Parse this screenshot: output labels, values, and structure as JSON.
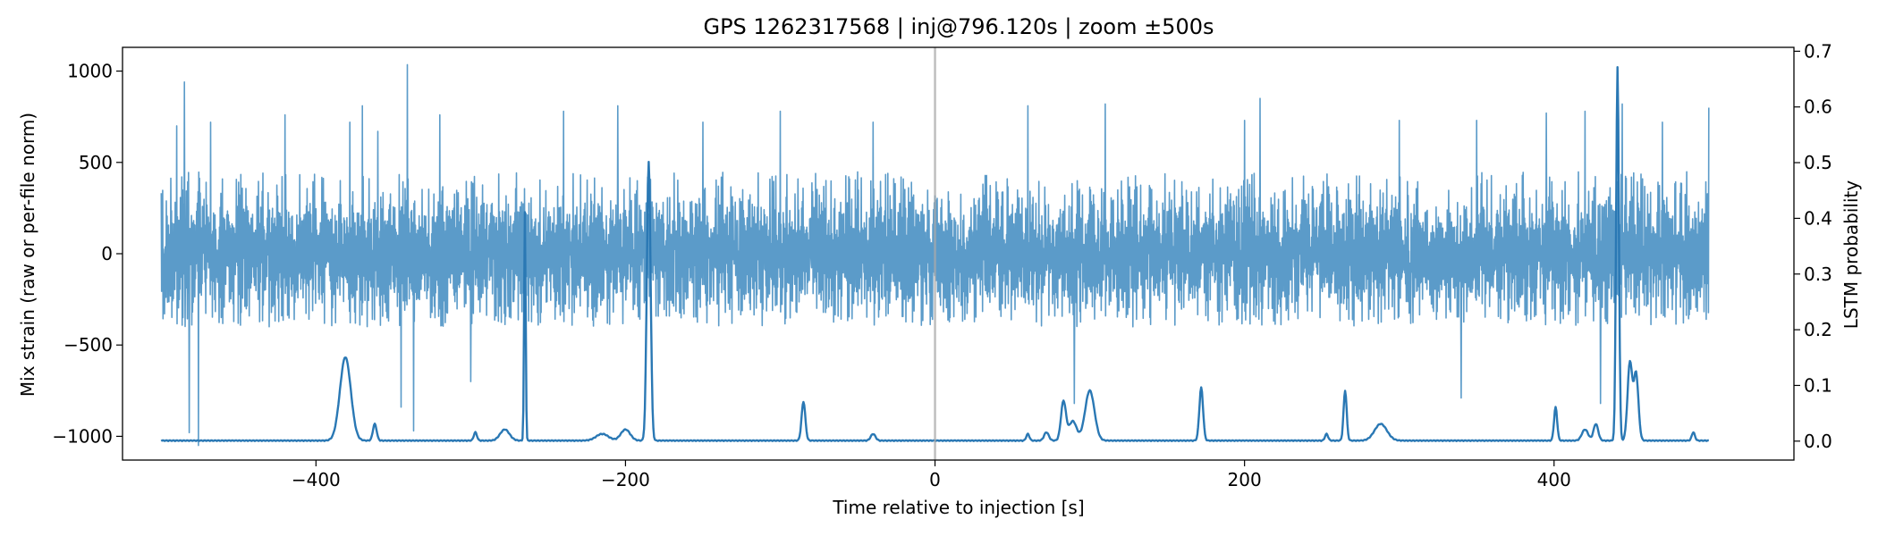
{
  "chart_data": {
    "type": "line",
    "title": "GPS 1262317568 | inj@796.120s | zoom ±500s",
    "xlabel": "Time relative to injection [s]",
    "ylabel": "Mix strain (raw or per-file norm)",
    "ylabel_right": "LSTM probability",
    "xlim": [
      -525,
      555
    ],
    "ylim": [
      -1130,
      1130
    ],
    "ylim_right": [
      -0.034,
      0.707
    ],
    "x_ticks": [
      -400,
      -200,
      0,
      200,
      400
    ],
    "y_ticks": [
      -1000,
      -500,
      0,
      500,
      1000
    ],
    "y_ticks_right": [
      0.0,
      0.1,
      0.2,
      0.3,
      0.4,
      0.5,
      0.6,
      0.7
    ],
    "x_tick_labels": [
      "−400",
      "−200",
      "0",
      "200",
      "400"
    ],
    "y_tick_labels": [
      "−1000",
      "−500",
      "0",
      "500",
      "1000"
    ],
    "y_tick_labels_right": [
      "0.0",
      "0.1",
      "0.2",
      "0.3",
      "0.4",
      "0.5",
      "0.6",
      "0.7"
    ],
    "grid": false,
    "injection_marker_x": 0,
    "colors": {
      "strain": "#5b9bc9",
      "probability": "#2a78b4",
      "marker": "#aaaaaa"
    },
    "strain": {
      "x_range": [
        -500,
        500
      ],
      "typical_amplitude": [
        -400,
        450
      ],
      "spikes": [
        {
          "x": -490,
          "y": 700
        },
        {
          "x": -485,
          "y": 940
        },
        {
          "x": -482,
          "y": -980
        },
        {
          "x": -476,
          "y": -1050
        },
        {
          "x": -468,
          "y": 720
        },
        {
          "x": -420,
          "y": 760
        },
        {
          "x": -378,
          "y": 720
        },
        {
          "x": -370,
          "y": 810
        },
        {
          "x": -360,
          "y": 670
        },
        {
          "x": -345,
          "y": -840
        },
        {
          "x": -341,
          "y": 1035
        },
        {
          "x": -337,
          "y": -970
        },
        {
          "x": -320,
          "y": 760
        },
        {
          "x": -300,
          "y": -700
        },
        {
          "x": -240,
          "y": 780
        },
        {
          "x": -205,
          "y": 810
        },
        {
          "x": -150,
          "y": 720
        },
        {
          "x": -100,
          "y": 780
        },
        {
          "x": -40,
          "y": 720
        },
        {
          "x": 60,
          "y": 810
        },
        {
          "x": 90,
          "y": -820
        },
        {
          "x": 110,
          "y": 820
        },
        {
          "x": 200,
          "y": 730
        },
        {
          "x": 210,
          "y": 850
        },
        {
          "x": 300,
          "y": 730
        },
        {
          "x": 340,
          "y": -790
        },
        {
          "x": 350,
          "y": 730
        },
        {
          "x": 395,
          "y": 770
        },
        {
          "x": 420,
          "y": 780
        },
        {
          "x": 430,
          "y": -820
        },
        {
          "x": 444,
          "y": 820
        },
        {
          "x": 470,
          "y": 720
        },
        {
          "x": 500,
          "y": 800
        }
      ]
    },
    "probability": {
      "baseline": 0.0,
      "peaks": [
        {
          "x": -381,
          "y": 0.15,
          "w": 3.5
        },
        {
          "x": -362,
          "y": 0.03,
          "w": 1.2
        },
        {
          "x": -297,
          "y": 0.015,
          "w": 1.0
        },
        {
          "x": -278,
          "y": 0.02,
          "w": 3.0
        },
        {
          "x": -265,
          "y": 0.41,
          "w": 0.5
        },
        {
          "x": -215,
          "y": 0.012,
          "w": 4.0
        },
        {
          "x": -200,
          "y": 0.02,
          "w": 3.0
        },
        {
          "x": -185,
          "y": 0.5,
          "w": 1.2
        },
        {
          "x": -85,
          "y": 0.07,
          "w": 1.2
        },
        {
          "x": -40,
          "y": 0.012,
          "w": 1.5
        },
        {
          "x": 60,
          "y": 0.012,
          "w": 1.0
        },
        {
          "x": 72,
          "y": 0.015,
          "w": 1.5
        },
        {
          "x": 83,
          "y": 0.07,
          "w": 1.6
        },
        {
          "x": 89,
          "y": 0.035,
          "w": 2.5
        },
        {
          "x": 100,
          "y": 0.09,
          "w": 3.0
        },
        {
          "x": 172,
          "y": 0.095,
          "w": 1.2
        },
        {
          "x": 253,
          "y": 0.012,
          "w": 1.0
        },
        {
          "x": 265,
          "y": 0.09,
          "w": 1.0
        },
        {
          "x": 288,
          "y": 0.03,
          "w": 4.0
        },
        {
          "x": 401,
          "y": 0.06,
          "w": 1.0
        },
        {
          "x": 420,
          "y": 0.02,
          "w": 2.0
        },
        {
          "x": 427,
          "y": 0.03,
          "w": 1.5
        },
        {
          "x": 441,
          "y": 0.67,
          "w": 0.9
        },
        {
          "x": 449,
          "y": 0.14,
          "w": 1.5
        },
        {
          "x": 453,
          "y": 0.12,
          "w": 1.5
        },
        {
          "x": 490,
          "y": 0.015,
          "w": 1.0
        }
      ]
    }
  }
}
